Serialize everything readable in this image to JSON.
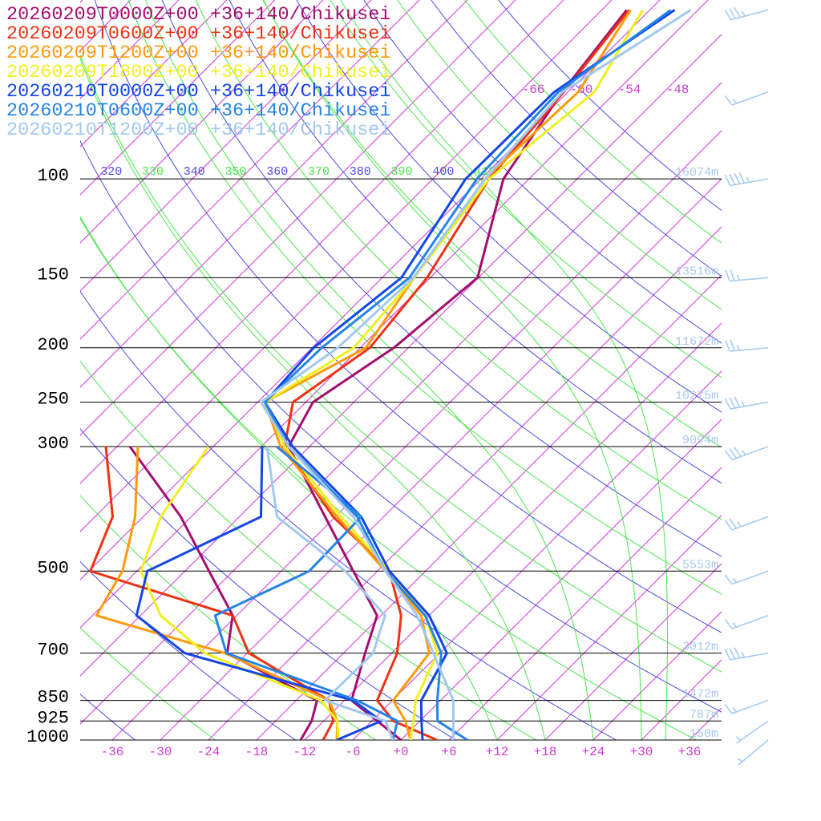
{
  "chart_data": {
    "type": "skewt",
    "legend": "upper left",
    "y_log": true,
    "xlim": [
      -40,
      40
    ],
    "ylim": [
      1000,
      48
    ],
    "xticks": [
      -36,
      -30,
      -24,
      -18,
      -12,
      -6,
      {
        "value": 0,
        "label": "+0"
      },
      {
        "value": 6,
        "label": "+6"
      },
      {
        "value": 12,
        "label": "+12"
      },
      {
        "value": 18,
        "label": "+18"
      },
      {
        "value": 24,
        "label": "+24"
      },
      {
        "value": 30,
        "label": "+30"
      },
      {
        "value": 36,
        "label": "+36"
      }
    ],
    "yticks": [
      100,
      150,
      200,
      250,
      300,
      500,
      700,
      850,
      925,
      1000
    ],
    "height_labels": [
      "16074m",
      "13516m",
      "11672m",
      "10275m",
      "9094m",
      "5553m",
      "3012m",
      "1472m",
      "787m",
      "150m"
    ],
    "height_color": "#a8c8ec",
    "isotherms": [
      -132,
      -126,
      -120,
      -114,
      -108,
      -102,
      -96,
      -90,
      -84,
      -78,
      -72,
      -66,
      -60,
      -54,
      -48,
      -42,
      -36,
      -30,
      -24,
      -18,
      -12,
      -6,
      0,
      6,
      12,
      18,
      24,
      30,
      36
    ],
    "isotherm_labels": [
      -66,
      -60,
      -54,
      -48
    ],
    "isotherm_color": "#d23ad2",
    "dry_adiabats": [
      240,
      250,
      260,
      270,
      280,
      290,
      300,
      310,
      320,
      330,
      340,
      350,
      360,
      370,
      380,
      390,
      400,
      410,
      420,
      430,
      440,
      450,
      460
    ],
    "dry_adiabat_colors": [
      "#4b4be6",
      "#4be64b"
    ],
    "moist_adiabats": [
      12,
      18,
      24,
      30,
      33
    ],
    "moist_adiabat_color": "#4be64b",
    "pressure": [
      1000,
      925,
      850,
      700,
      600,
      500,
      400,
      300,
      250,
      200,
      150,
      100,
      70,
      50
    ],
    "series": [
      {
        "name": "20260209T0000Z+00 +36+140/Chikusei",
        "color": "#a50d6e",
        "temperature": [
          0,
          -5.3,
          -11.1,
          -15.3,
          -18.5,
          -27,
          -37.3,
          -50.6,
          -53.1,
          -49.8,
          -48.1,
          -57.2,
          -60.7,
          -62.9
        ],
        "dewpoint": [
          -12.5,
          -13.5,
          -15.4,
          -32.5,
          -36.5,
          -45,
          -55.3,
          -70.4,
          null,
          null,
          null,
          null,
          null,
          null
        ]
      },
      {
        "name": "20260209T0600Z+00 +36+140/Chikusei",
        "color": "#f03214",
        "temperature": [
          4.5,
          -3.3,
          -7.9,
          -11.3,
          -15.5,
          -22.5,
          -36.3,
          -51.1,
          -55.6,
          -52.8,
          -54.4,
          -59,
          -60.5,
          -62.6
        ],
        "dewpoint": [
          -9.7,
          -10.8,
          -13.9,
          -29.8,
          -36.5,
          -59.8,
          -63.8,
          -73.4,
          null,
          null,
          null,
          null,
          null,
          null
        ]
      },
      {
        "name": "20260209T1200Z+00 +36+140/Chikusei",
        "color": "#ff9a0a",
        "temperature": [
          1.2,
          -1.8,
          -5.9,
          -7.3,
          -13,
          -23,
          -35.8,
          -51.6,
          -59.1,
          -53.3,
          -56,
          -59.5,
          -58.7,
          -62.4
        ],
        "dewpoint": [
          -8,
          -10.3,
          -13.9,
          -32.8,
          -53.5,
          -55.8,
          -61,
          -69.4,
          null,
          null,
          null,
          null,
          null,
          null
        ]
      },
      {
        "name": "20260209T1800Z+00 +36+140/Chikusei",
        "color": "#f0f020",
        "temperature": [
          1.2,
          -0.8,
          -3.1,
          -6.3,
          -12.5,
          -22.5,
          -35.3,
          -51.1,
          -59.1,
          -54.8,
          -56,
          -59,
          -56.7,
          -60.9
        ],
        "dewpoint": [
          -7.8,
          -10.3,
          -14.9,
          -35.3,
          -45.5,
          -53.5,
          -57.8,
          -60.6,
          null,
          null,
          null,
          null,
          null,
          null
        ]
      },
      {
        "name": "20260210T0000Z+00 +36+140/Chikusei",
        "color": "#1446e6",
        "temperature": [
          2.7,
          0.2,
          -2.4,
          -5.1,
          -12,
          -22.5,
          -32.8,
          -50.1,
          -59.1,
          -59.8,
          -57.6,
          -61.9,
          -61.7,
          -56.9
        ],
        "dewpoint": [
          -8,
          -4.8,
          -10.9,
          -37.8,
          -48.5,
          -52.7,
          -45.3,
          -53.9,
          null,
          null,
          null,
          null,
          null,
          null
        ]
      },
      {
        "name": "20260210T0600Z+00 +36+140/Chikusei",
        "color": "#2584e6",
        "temperature": [
          8.3,
          2.2,
          -0.4,
          -5.8,
          -12.5,
          -23,
          -33.3,
          -50.6,
          -59.1,
          -58.8,
          -56.6,
          -60.5,
          -61.2,
          -57.4
        ],
        "dewpoint": [
          -1,
          -2.8,
          -10.4,
          -32.6,
          -38.7,
          -32.5,
          -32.8,
          -52.1,
          null,
          null,
          null,
          null,
          null,
          null
        ]
      },
      {
        "name": "20260210T1200Z+00 +36+140/Chikusei",
        "color": "#a2c8f0",
        "temperature": [
          6.5,
          4.2,
          1.6,
          -6.8,
          -13.5,
          -23,
          -33.8,
          -50.6,
          -59.6,
          -56.8,
          -56.1,
          -59.5,
          -60.7,
          -54.9
        ],
        "dewpoint": [
          -1,
          -4.3,
          -14.4,
          -14.3,
          -17.5,
          -28,
          -43.3,
          -53.3,
          null,
          null,
          null,
          null,
          null,
          null
        ]
      }
    ],
    "winds": {
      "color": "#a2c8f0",
      "pressure": [
        50,
        70,
        100,
        150,
        200,
        250,
        300,
        400,
        500,
        600,
        700,
        850,
        925,
        1000
      ],
      "direction": [
        255,
        250,
        260,
        265,
        265,
        260,
        250,
        250,
        250,
        250,
        260,
        250,
        235,
        230
      ],
      "speed": [
        35,
        15,
        45,
        25,
        25,
        35,
        35,
        25,
        15,
        15,
        35,
        15,
        5,
        5
      ]
    }
  }
}
